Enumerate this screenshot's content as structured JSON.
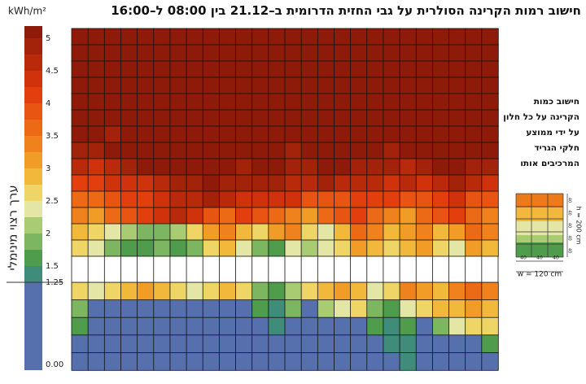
{
  "chart_data": {
    "type": "heatmap",
    "title": "חישוב רמות הקרינה הסולרית על גבי החזית הדרומית ב–21.12 בין 08:00 ל–16:00",
    "unit": "kWh/m²",
    "colorbar_label": "ערך רצוי מינימלי",
    "colorscale": [
      {
        "min": 5,
        "color": "#8e1a0a"
      },
      {
        "min": 4.75,
        "color": "#a2220a"
      },
      {
        "min": 4.5,
        "color": "#b82a0a"
      },
      {
        "min": 4.25,
        "color": "#d0320c"
      },
      {
        "min": 4,
        "color": "#e33e0e"
      },
      {
        "min": 3.75,
        "color": "#e85412"
      },
      {
        "min": 3.5,
        "color": "#ec6a16"
      },
      {
        "min": 3.25,
        "color": "#ef821c"
      },
      {
        "min": 3,
        "color": "#f29c28"
      },
      {
        "min": 2.75,
        "color": "#f2b83c"
      },
      {
        "min": 2.5,
        "color": "#efd566"
      },
      {
        "min": 2.25,
        "color": "#e3e6a4"
      },
      {
        "min": 2,
        "color": "#a9cb72"
      },
      {
        "min": 1.75,
        "color": "#7db660"
      },
      {
        "min": 1.5,
        "color": "#4e9c4c"
      },
      {
        "min": 1.25,
        "color": "#3f8c7a"
      },
      {
        "min": 0,
        "color": "#5570ad"
      }
    ],
    "colorbar_ticks": [
      5,
      4.5,
      4,
      3.5,
      3,
      2.5,
      2,
      1.5,
      1.25,
      {
        "value": 0,
        "label": "0.00"
      }
    ],
    "panels": [
      {
        "z": [
          [
            5.1,
            5.1,
            5.1,
            5.1,
            5.1,
            5.1,
            5.1,
            5.1,
            5.1,
            5.1,
            5.1,
            5.1,
            5.1,
            5.1,
            5.1,
            5.1,
            5.1,
            5.1,
            5.1,
            5.1,
            5.1,
            5.1,
            5.1,
            5.1,
            5.1,
            5.1
          ],
          [
            5.1,
            5.1,
            5.1,
            5.1,
            5.1,
            5.1,
            5.1,
            5.1,
            5.1,
            5.1,
            5.1,
            5.1,
            5.1,
            5.1,
            5.1,
            5.1,
            5.1,
            5.1,
            5.1,
            5.1,
            5.1,
            5.1,
            5.1,
            5.1,
            5.1,
            5.1
          ],
          [
            5.1,
            5.1,
            5.1,
            5.1,
            5.1,
            5.1,
            5.1,
            5.1,
            5.1,
            5.1,
            5.1,
            5.1,
            5.1,
            5.1,
            5.1,
            5.1,
            5.1,
            5.1,
            5.1,
            5.1,
            5.1,
            5.1,
            5.1,
            5.1,
            5.1,
            5.1
          ],
          [
            5.1,
            5.1,
            5.1,
            5.1,
            5.1,
            5.1,
            5.1,
            5.1,
            5.1,
            5.1,
            5.1,
            5.1,
            5.1,
            5.1,
            5.1,
            5.1,
            5.1,
            5.1,
            5.1,
            5.1,
            5.1,
            5.1,
            5.1,
            5.1,
            5.1,
            5.1
          ],
          [
            5.1,
            5.1,
            5.1,
            5.1,
            5.1,
            5.1,
            5.1,
            5.1,
            5.1,
            5.1,
            5.1,
            5.1,
            5.1,
            5.1,
            5.1,
            5.1,
            5.1,
            5.1,
            5.1,
            5.1,
            5.1,
            5.1,
            5.1,
            5.1,
            5.1,
            5.1
          ],
          [
            5.1,
            5.1,
            5.1,
            5.1,
            5.1,
            5.1,
            5.1,
            5.1,
            5.1,
            5.1,
            5.1,
            5.1,
            5.1,
            5.1,
            5.1,
            5.1,
            5.1,
            5.1,
            5.1,
            5.1,
            5.1,
            5.1,
            5.1,
            5.1,
            5.1,
            5.1
          ],
          [
            5.1,
            5.1,
            4.9,
            5.1,
            5.1,
            5.1,
            5.1,
            5.1,
            5.1,
            5.1,
            5.1,
            5.1,
            5.1,
            5.1,
            5.1,
            5.1,
            5.1,
            5.1,
            5.1,
            5.1,
            5.1,
            5.1,
            5.1,
            5.1,
            5.1,
            5.1
          ],
          [
            4.9,
            4.9,
            5.1,
            5.1,
            5.1,
            5.1,
            5.1,
            5.1,
            5.1,
            5.1,
            5.1,
            5.1,
            5.1,
            4.9,
            5.1,
            5.1,
            5.1,
            5.1,
            5.1,
            4.9,
            5.1,
            5.1,
            5.1,
            5.1,
            5.1,
            5.1
          ],
          [
            4.6,
            4.4,
            4.6,
            4.9,
            5.1,
            5.1,
            5.1,
            5.1,
            5.1,
            5.1,
            4.9,
            5.1,
            5.1,
            4.9,
            4.9,
            5.1,
            5.1,
            4.9,
            4.9,
            4.9,
            4.6,
            4.9,
            5.1,
            5.1,
            4.9,
            4.9
          ],
          [
            4.1,
            4.1,
            4.4,
            4.4,
            4.4,
            4.6,
            4.9,
            4.9,
            5.1,
            4.9,
            4.9,
            4.9,
            4.9,
            4.6,
            4.6,
            4.9,
            4.6,
            4.6,
            4.6,
            4.4,
            4.6,
            4.4,
            4.6,
            4.9,
            4.6,
            4.4
          ],
          [
            3.6,
            3.6,
            3.9,
            4.1,
            4.1,
            4.4,
            4.6,
            4.6,
            4.9,
            4.6,
            4.4,
            4.4,
            4.4,
            4.4,
            3.9,
            3.9,
            3.9,
            4.1,
            4.1,
            4.1,
            3.9,
            3.9,
            4.1,
            4.4,
            3.9,
            3.9
          ],
          [
            3.4,
            3.1,
            3.6,
            3.9,
            4.1,
            4.4,
            4.6,
            4.4,
            3.9,
            3.6,
            4.1,
            3.9,
            3.6,
            3.4,
            3.1,
            3.6,
            3.9,
            4.1,
            3.6,
            3.4,
            3.1,
            3.6,
            3.9,
            4.1,
            3.6,
            3.4
          ],
          [
            2.9,
            2.6,
            2.4,
            2.1,
            1.9,
            1.9,
            2.1,
            2.6,
            3.1,
            3.4,
            2.9,
            2.6,
            3.1,
            3.4,
            2.6,
            2.4,
            2.9,
            3.6,
            3.4,
            2.9,
            3.1,
            3.4,
            2.9,
            3.1,
            3.6,
            3.4
          ],
          [
            2.6,
            2.4,
            1.9,
            1.6,
            1.6,
            1.9,
            1.6,
            1.9,
            2.6,
            2.9,
            2.4,
            1.9,
            1.6,
            2.4,
            2.1,
            2.4,
            2.6,
            3.1,
            2.9,
            2.6,
            2.9,
            3.1,
            2.6,
            2.4,
            3.1,
            2.9
          ]
        ]
      },
      {
        "z": [
          [
            2.6,
            2.4,
            2.6,
            2.9,
            3.1,
            2.9,
            2.6,
            2.4,
            2.6,
            2.9,
            2.6,
            1.9,
            1.6,
            2.1,
            2.6,
            2.9,
            3.1,
            2.9,
            2.4,
            2.6,
            3.4,
            3.1,
            2.9,
            3.4,
            3.6,
            3.4
          ],
          [
            1.9,
            0.6,
            0.6,
            0.6,
            0.6,
            0.6,
            0.6,
            0.6,
            0.6,
            0.6,
            0.6,
            1.6,
            1.4,
            1.9,
            0.6,
            2.1,
            2.4,
            2.6,
            1.9,
            1.6,
            2.4,
            2.6,
            2.9,
            2.9,
            3.1,
            2.9
          ],
          [
            1.6,
            0.6,
            0.6,
            0.6,
            0.6,
            0.6,
            0.6,
            0.6,
            0.6,
            0.6,
            0.6,
            0.6,
            1.4,
            0.6,
            0.6,
            0.6,
            0.6,
            0.6,
            1.6,
            1.4,
            1.6,
            0.6,
            1.9,
            2.4,
            2.6,
            2.6
          ],
          [
            0.6,
            0.6,
            0.6,
            0.6,
            0.6,
            0.6,
            0.6,
            0.6,
            0.6,
            0.6,
            0.6,
            0.6,
            0.6,
            0.6,
            0.6,
            0.6,
            0.6,
            0.6,
            0.6,
            1.4,
            1.4,
            0.6,
            0.6,
            0.6,
            0.6,
            1.6
          ],
          [
            0.6,
            0.6,
            0.6,
            0.6,
            0.6,
            0.6,
            0.6,
            0.6,
            0.6,
            0.6,
            0.6,
            0.6,
            0.6,
            0.6,
            0.6,
            0.6,
            0.6,
            0.6,
            0.6,
            0.6,
            1.4,
            0.6,
            0.6,
            0.6,
            0.6,
            0.6
          ]
        ]
      }
    ],
    "annotation": [
      "חישוב כמות",
      "הקרינה על כל חלון",
      "על ידי ממוצע",
      "חלקי הגריד",
      "המרכיבים אותו"
    ],
    "window_diagram": {
      "cell_width_labels": [
        "40",
        "40",
        "40"
      ],
      "cell_height_labels": [
        "40",
        "40",
        "40",
        "40",
        "40"
      ],
      "height_label": "h = 200 cm",
      "width_label": "w = 120 cm"
    }
  }
}
